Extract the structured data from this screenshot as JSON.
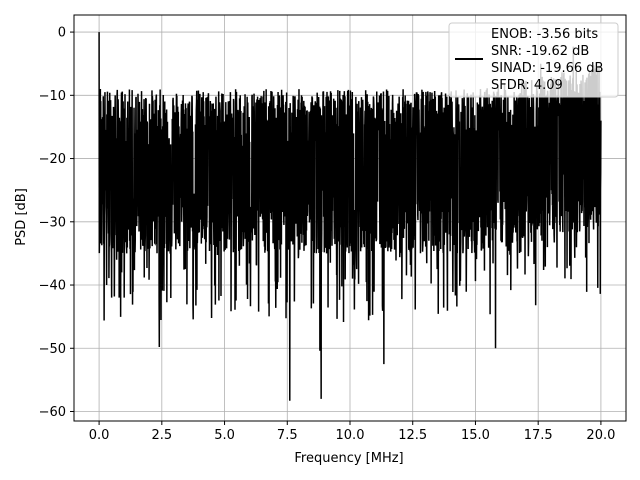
{
  "chart_data": {
    "type": "line",
    "title": "",
    "xlabel": "Frequency [MHz]",
    "ylabel": "PSD [dB]",
    "xlim": [
      -1.0,
      21.0
    ],
    "ylim": [
      -61.5,
      2.7
    ],
    "xticks": [
      0.0,
      2.5,
      5.0,
      7.5,
      10.0,
      12.5,
      15.0,
      17.5,
      20.0
    ],
    "xtick_labels": [
      "0.0",
      "2.5",
      "5.0",
      "7.5",
      "10.0",
      "12.5",
      "15.0",
      "17.5",
      "20.0"
    ],
    "yticks": [
      0,
      -10,
      -20,
      -30,
      -40,
      -50,
      -60
    ],
    "ytick_labels": [
      "0",
      "−10",
      "−20",
      "−30",
      "−40",
      "−50",
      "−60"
    ],
    "grid": true,
    "legend_position": "top-right",
    "legend_lines": [
      "ENOB: -3.56 bits",
      "SNR: -19.62 dB",
      "SINAD: -19.66 dB",
      "SFDR: 4.09"
    ],
    "series": [
      {
        "color": "#000000",
        "description_of_signal": "dense noise-like PSD spectrum",
        "x": [
          0.0,
          0.02,
          0.05,
          0.1,
          0.15,
          0.2,
          0.25,
          0.3,
          0.35,
          0.4,
          0.45,
          0.5,
          0.55,
          0.6,
          0.65,
          0.7,
          0.75,
          0.8,
          0.85,
          0.9,
          0.95,
          1.0,
          1.05,
          1.1,
          1.15,
          2.4,
          2.45,
          2.5,
          7.6,
          7.65,
          7.7,
          8.8,
          8.85,
          8.9,
          11.35,
          11.4,
          11.45,
          15.8,
          15.85,
          15.9,
          17.6,
          17.65,
          17.7,
          18.9,
          18.95,
          19.0,
          20.0
        ],
        "y": [
          0.0,
          -32.0,
          -9.0,
          -28.0,
          -14.0,
          -45.6,
          -18.0,
          -40.0,
          -17.0,
          -34.0,
          -22.0,
          -42.0,
          -18.0,
          -30.0,
          -20.0,
          -36.0,
          -17.0,
          -42.0,
          -16.0,
          -38.0,
          -22.0,
          -42.0,
          -19.0,
          -35.0,
          -20.0,
          -49.8,
          -20.0,
          -30.0,
          -58.3,
          -22.0,
          -30.0,
          -50.4,
          -58.0,
          -25.0,
          -52.5,
          -20.0,
          -28.0,
          -50.0,
          -19.0,
          -27.0,
          -5.0,
          -33.0,
          -22.0,
          -2.3,
          -33.0,
          -18.0,
          -14.0
        ]
      }
    ]
  }
}
